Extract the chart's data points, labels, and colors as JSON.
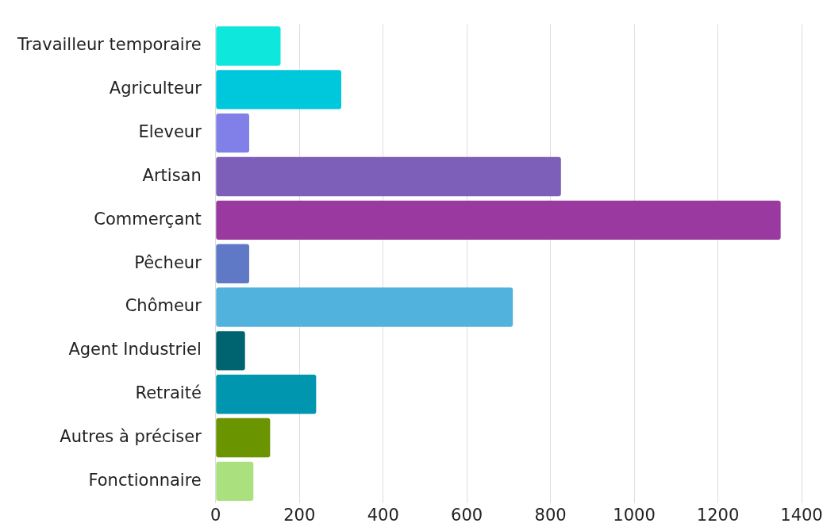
{
  "chart_data": {
    "type": "bar",
    "orientation": "horizontal",
    "categories": [
      "Travailleur temporaire",
      "Agriculteur",
      "Eleveur",
      "Artisan",
      "Commerçant",
      "Pêcheur",
      "Chômeur",
      "Agent Industriel",
      "Retraité",
      "Autres à préciser",
      "Fonctionnaire"
    ],
    "values": [
      155,
      300,
      80,
      825,
      1350,
      80,
      710,
      70,
      240,
      130,
      90
    ],
    "colors": [
      "#0ee8dc",
      "#00c8dc",
      "#8080e8",
      "#7d5fba",
      "#9a3aa0",
      "#6079c6",
      "#52b2de",
      "#006470",
      "#0096b0",
      "#6a9400",
      "#abe07e"
    ],
    "xlim": [
      0,
      1400
    ],
    "xticks": [
      0,
      200,
      400,
      600,
      800,
      1000,
      1200,
      1400
    ],
    "grid": "x",
    "legend": false
  }
}
